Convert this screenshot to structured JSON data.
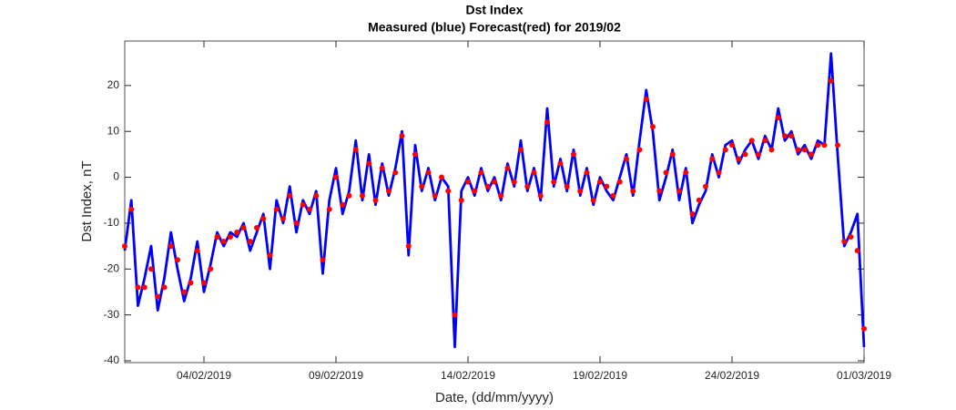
{
  "chart_data": {
    "type": "line",
    "title": "Dst Index",
    "subtitle": "Measured (blue) Forecast(red) for 2019/02",
    "x_label": "Date, (dd/mm/yyyy)",
    "y_label": "Dst Index, nT",
    "x": [
      1,
      1.25,
      1.5,
      1.75,
      2,
      2.25,
      2.5,
      2.75,
      3,
      3.25,
      3.5,
      3.75,
      4,
      4.25,
      4.5,
      4.75,
      5,
      5.25,
      5.5,
      5.75,
      6,
      6.25,
      6.5,
      6.75,
      7,
      7.25,
      7.5,
      7.75,
      8,
      8.25,
      8.5,
      8.75,
      9,
      9.25,
      9.5,
      9.75,
      10,
      10.25,
      10.5,
      10.75,
      11,
      11.25,
      11.5,
      11.75,
      12,
      12.25,
      12.5,
      12.75,
      13,
      13.25,
      13.5,
      13.75,
      14,
      14.25,
      14.5,
      14.75,
      15,
      15.25,
      15.5,
      15.75,
      16,
      16.25,
      16.5,
      16.75,
      17,
      17.25,
      17.5,
      17.75,
      18,
      18.25,
      18.5,
      18.75,
      19,
      19.25,
      19.5,
      19.75,
      20,
      20.25,
      20.5,
      20.75,
      21,
      21.25,
      21.5,
      21.75,
      22,
      22.25,
      22.5,
      22.75,
      23,
      23.25,
      23.5,
      23.75,
      24,
      24.25,
      24.5,
      24.75,
      25,
      25.25,
      25.5,
      25.75,
      26,
      26.25,
      26.5,
      26.75,
      27,
      27.25,
      27.5,
      27.75,
      28,
      28.25,
      28.5,
      28.75,
      29
    ],
    "series": [
      {
        "color": "#0000ff",
        "mode": "line",
        "values": [
          -16,
          -5,
          -28,
          -22,
          -15,
          -29,
          -22,
          -12,
          -20,
          -27,
          -22,
          -14,
          -25,
          -19,
          -12,
          -15,
          -12,
          -13,
          -10,
          -16,
          -12,
          -8,
          -20,
          -5,
          -10,
          -2,
          -12,
          -5,
          -8,
          -3,
          -21,
          -5,
          2,
          -8,
          -3,
          8,
          -5,
          5,
          -6,
          3,
          -4,
          2,
          10,
          -17,
          7,
          -3,
          2,
          -5,
          0,
          -2,
          -37,
          -3,
          0,
          -4,
          2,
          -3,
          0,
          -5,
          3,
          -2,
          8,
          -3,
          2,
          -5,
          15,
          -2,
          4,
          -3,
          6,
          -4,
          2,
          -6,
          0,
          -3,
          -5,
          0,
          5,
          -4,
          8,
          19,
          10,
          -5,
          0,
          6,
          -5,
          2,
          -10,
          -6,
          -3,
          5,
          0,
          7,
          8,
          3,
          6,
          8,
          4,
          9,
          6,
          15,
          8,
          10,
          5,
          7,
          4,
          8,
          7,
          27,
          5,
          -15,
          -12,
          -8,
          -37
        ]
      },
      {
        "color": "#ff0000",
        "mode": "markers",
        "values": [
          -15,
          -7,
          -24,
          -24,
          -20,
          -26,
          -24,
          -15,
          -18,
          -25,
          -23,
          -16,
          -23,
          -20,
          -13,
          -14,
          -13,
          -12,
          -11,
          -14,
          -11,
          -9,
          -17,
          -7,
          -9,
          -4,
          -10,
          -6,
          -7,
          -4,
          -18,
          -7,
          0,
          -6,
          -4,
          6,
          -4,
          3,
          -5,
          2,
          -3,
          1,
          9,
          -15,
          5,
          -2,
          1,
          -4,
          0,
          -3,
          -30,
          -5,
          -1,
          -3,
          1,
          -2,
          -1,
          -4,
          2,
          -1,
          6,
          -2,
          1,
          -4,
          12,
          -1,
          3,
          -2,
          5,
          -3,
          1,
          -5,
          -1,
          -2,
          -4,
          -1,
          4,
          -3,
          6,
          17,
          11,
          -3,
          1,
          5,
          -3,
          1,
          -8,
          -5,
          -2,
          4,
          1,
          6,
          7,
          4,
          5,
          8,
          5,
          8,
          6,
          13,
          9,
          9,
          6,
          6,
          5,
          7,
          7,
          21,
          7,
          -14,
          -13,
          -16,
          -33
        ]
      }
    ],
    "xlim": [
      1,
      29
    ],
    "xticks": [
      {
        "value": 4,
        "label": "04/02/2019"
      },
      {
        "value": 9,
        "label": "09/02/2019"
      },
      {
        "value": 14,
        "label": "14/02/2019"
      },
      {
        "value": 19,
        "label": "19/02/2019"
      },
      {
        "value": 24,
        "label": "24/02/2019"
      },
      {
        "value": 29,
        "label": "01/03/2019"
      }
    ],
    "ylim": [
      -40.4,
      29.7
    ],
    "yticks": [
      -40,
      -30,
      -20,
      -10,
      0,
      10,
      20
    ],
    "grid": false
  }
}
